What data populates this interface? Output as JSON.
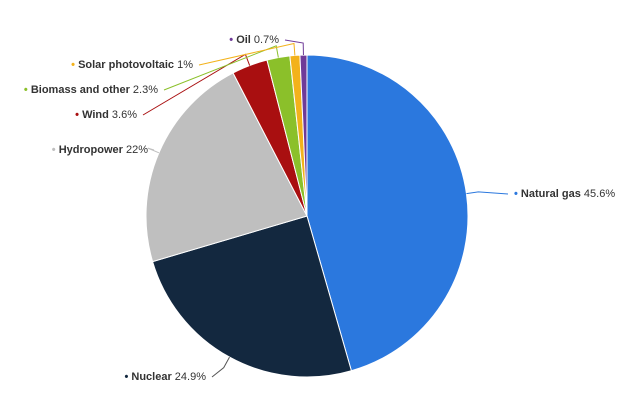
{
  "chart_data": {
    "type": "pie",
    "categories": [
      "Natural gas",
      "Nuclear",
      "Hydropower",
      "Wind",
      "Biomass and other",
      "Solar photovoltaic",
      "Oil"
    ],
    "values": [
      45.6,
      24.9,
      22,
      3.6,
      2.3,
      1,
      0.7
    ],
    "value_labels": [
      "45.6%",
      "24.9%",
      "22%",
      "3.6%",
      "2.3%",
      "1%",
      "0.7%"
    ],
    "colors": [
      "#2b78de",
      "#13283f",
      "#bfbfbf",
      "#a90f10",
      "#8bc02a",
      "#f3b21b",
      "#6f3b98"
    ]
  }
}
